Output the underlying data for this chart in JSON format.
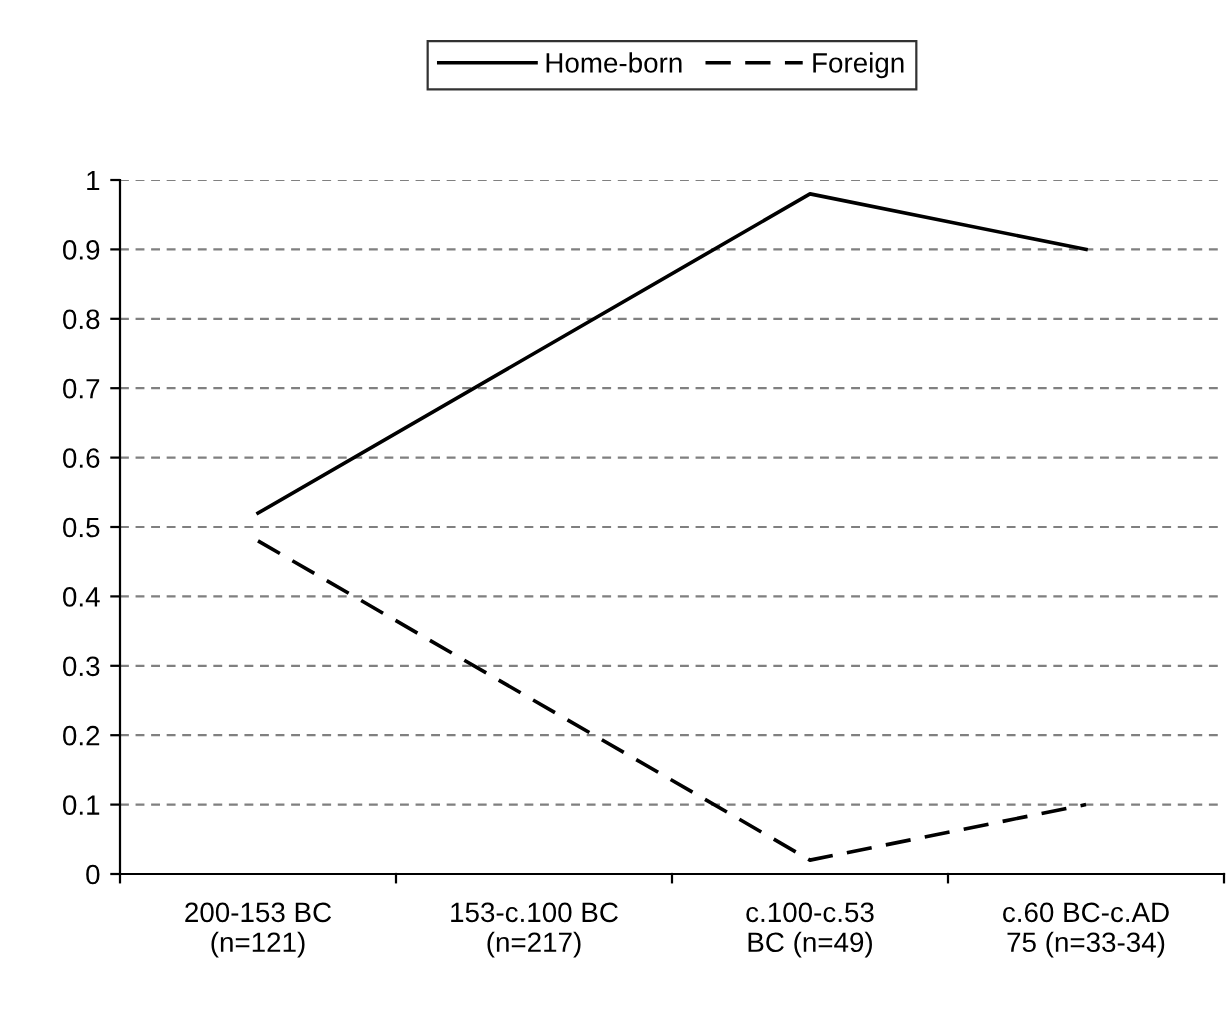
{
  "chart_data": {
    "type": "line",
    "categories": [
      "200-153 BC\n(n=121)",
      "153-c.100 BC\n(n=217)",
      "c.100-c.53\nBC (n=49)",
      "c.60 BC-c.AD\n75 (n=33-34)"
    ],
    "series": [
      {
        "name": "Home-born",
        "color": "#000000",
        "line_style": "solid",
        "values": [
          0.52,
          null,
          0.98,
          0.9
        ]
      },
      {
        "name": "Foreign",
        "color": "#000000",
        "line_style": "dashed",
        "values": [
          0.48,
          null,
          0.02,
          0.1
        ]
      }
    ],
    "ylim": [
      0,
      1
    ],
    "yticks": [
      0,
      0.1,
      0.2,
      0.3,
      0.4,
      0.5,
      0.6,
      0.7,
      0.8,
      0.9,
      1
    ],
    "grid": "y",
    "legend": "top",
    "marker": "none"
  }
}
